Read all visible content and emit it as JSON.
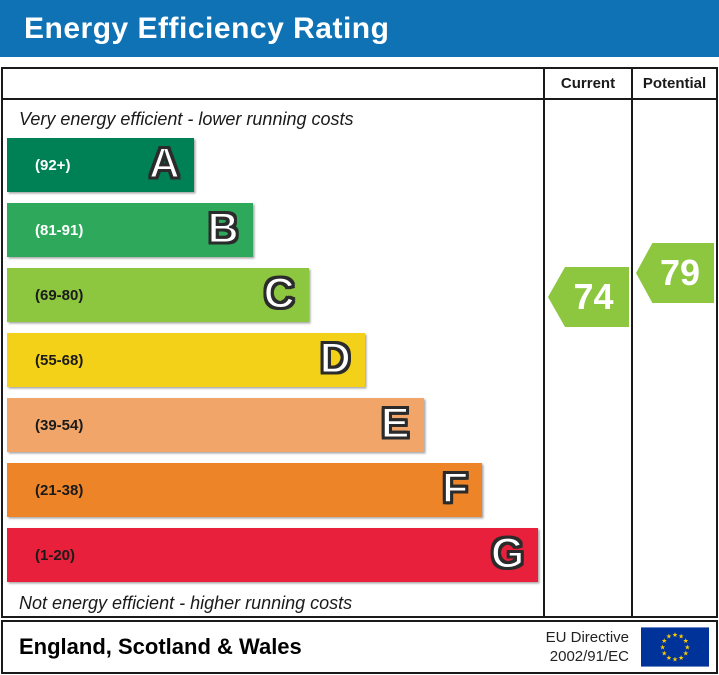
{
  "title": "Energy Efficiency Rating",
  "table": {
    "current_header": "Current",
    "potential_header": "Potential",
    "top_note": "Very energy efficient - lower running costs",
    "bottom_note": "Not energy efficient - higher running costs"
  },
  "colors": {
    "header_blue": "#0f72b5",
    "border": "#1a1a1a"
  },
  "bands": [
    {
      "letter": "A",
      "range_label": "(92+)",
      "color": "#008155",
      "width_pct": 35,
      "range_text_color": "#ffffff"
    },
    {
      "letter": "B",
      "range_label": "(81-91)",
      "color": "#2ea95c",
      "width_pct": 46,
      "range_text_color": "#ffffff"
    },
    {
      "letter": "C",
      "range_label": "(69-80)",
      "color": "#8dc63f",
      "width_pct": 56.5,
      "range_text_color": "#1a1a1a"
    },
    {
      "letter": "D",
      "range_label": "(55-68)",
      "color": "#f2d118",
      "width_pct": 67,
      "range_text_color": "#1a1a1a"
    },
    {
      "letter": "E",
      "range_label": "(39-54)",
      "color": "#f2a568",
      "width_pct": 78,
      "range_text_color": "#1a1a1a"
    },
    {
      "letter": "F",
      "range_label": "(21-38)",
      "color": "#ee8428",
      "width_pct": 89,
      "range_text_color": "#1a1a1a"
    },
    {
      "letter": "G",
      "range_label": "(1-20)",
      "color": "#e8203c",
      "width_pct": 99.5,
      "range_text_color": "#1a1a1a"
    }
  ],
  "ratings": {
    "current": {
      "value": "74",
      "color": "#8dc63f"
    },
    "potential": {
      "value": "79",
      "color": "#8dc63f"
    }
  },
  "footer": {
    "region_label": "England, Scotland & Wales",
    "directive_line1": "EU Directive",
    "directive_line2": "2002/91/EC",
    "flag": {
      "background": "#003399",
      "stars": "#ffcc00"
    }
  },
  "chart_data": {
    "type": "bar",
    "title": "Energy Efficiency Rating",
    "categories": [
      "A (92+)",
      "B (81-91)",
      "C (69-80)",
      "D (55-68)",
      "E (39-54)",
      "F (21-38)",
      "G (1-20)"
    ],
    "values": [
      35,
      46,
      56.5,
      67,
      78,
      89,
      99.5
    ],
    "value_unit": "percent of chart width (fixed EPC band lengths)",
    "band_colors": [
      "#008155",
      "#2ea95c",
      "#8dc63f",
      "#f2d118",
      "#f2a568",
      "#ee8428",
      "#e8203c"
    ],
    "current_rating": 74,
    "current_band": "C",
    "potential_rating": 79,
    "potential_band": "C",
    "top_note": "Very energy efficient - lower running costs",
    "bottom_note": "Not energy efficient - higher running costs",
    "footer_region": "England, Scotland & Wales",
    "footer_directive": "EU Directive 2002/91/EC"
  }
}
